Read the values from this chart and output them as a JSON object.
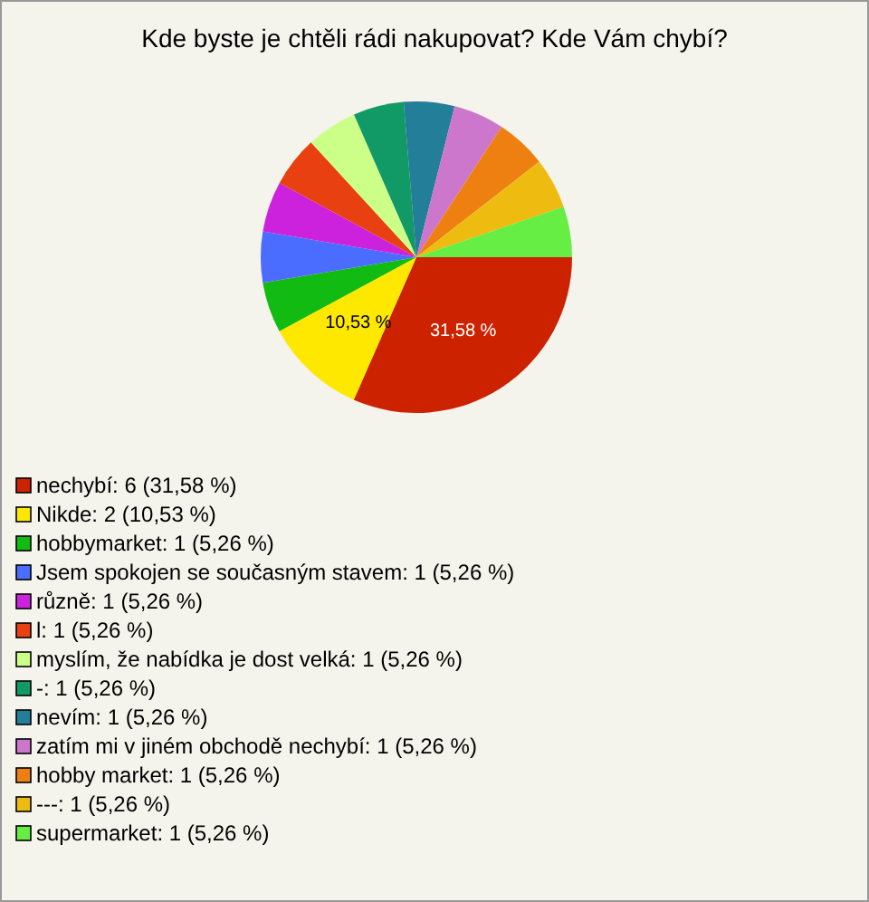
{
  "chart_data": {
    "type": "pie",
    "title": "Kde byste je chtěli rádi nakupovat? Kde Vám chybí?",
    "categories": [
      "nechybí: 6 (31,58 %)",
      "Nikde: 2 (10,53 %)",
      "hobbymarket: 1 (5,26 %)",
      "Jsem spokojen se současným stavem: 1 (5,26 %)",
      "různě: 1 (5,26 %)",
      "l: 1 (5,26 %)",
      "myslím, že nabídka je dost velká: 1 (5,26 %)",
      "-: 1 (5,26 %)",
      "nevím: 1 (5,26 %)",
      "zatím mi v jiném obchodě nechybí: 1 (5,26 %)",
      "hobby market: 1 (5,26 %)",
      "---: 1 (5,26 %)",
      "supermarket: 1 (5,26 %)"
    ],
    "values": [
      31.58,
      10.53,
      5.26,
      5.26,
      5.26,
      5.26,
      5.26,
      5.26,
      5.26,
      5.26,
      5.26,
      5.26,
      5.26
    ],
    "colors": [
      "#cc2200",
      "#ffe800",
      "#11bb11",
      "#4a6cff",
      "#cc22dd",
      "#e84010",
      "#ccff88",
      "#119966",
      "#237e99",
      "#cc77cc",
      "#ee8011",
      "#eebb11",
      "#66ee44"
    ],
    "value_labels": [
      "31,58 %",
      "10,53 %",
      null,
      null,
      null,
      null,
      null,
      null,
      null,
      null,
      null,
      null,
      null
    ],
    "legend": "bottom left"
  }
}
